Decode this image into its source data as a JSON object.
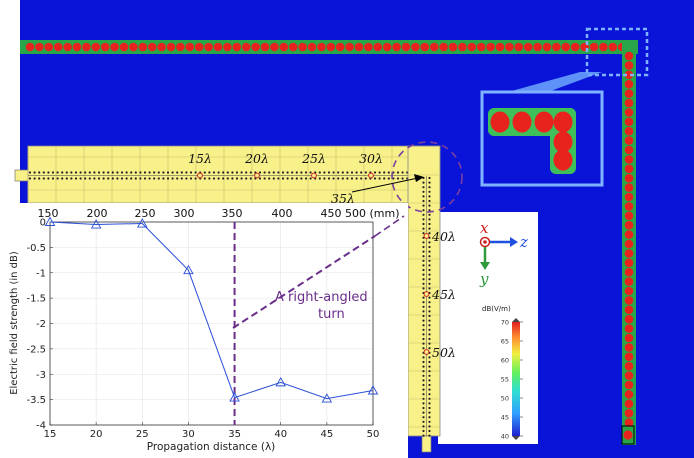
{
  "strip_labels": [
    "15λ",
    "20λ",
    "25λ",
    "30λ",
    "35λ"
  ],
  "vertical_labels": [
    "40λ",
    "45λ",
    "50λ"
  ],
  "mm_ticks": [
    "150",
    "200",
    "250",
    "300",
    "350",
    "400",
    "450",
    "500 (mm)"
  ],
  "annotation": {
    "line1": "A right-angled",
    "line2": "turn"
  },
  "axes": {
    "x_label": "x",
    "y_label": "y",
    "z_label": "z"
  },
  "colorbar": {
    "title": "dB(V/m)",
    "ticks": [
      "70",
      "65",
      "60",
      "55",
      "50",
      "45",
      "40"
    ],
    "range": [
      40,
      70
    ]
  },
  "chart_data": {
    "type": "line",
    "x": [
      15,
      20,
      25,
      30,
      35,
      40,
      45,
      50
    ],
    "values": [
      0,
      -0.05,
      -0.03,
      -0.95,
      -3.46,
      -3.16,
      -3.48,
      -3.32
    ],
    "x_ticks": [
      "15",
      "20",
      "25",
      "30",
      "35",
      "40",
      "45",
      "50"
    ],
    "y_ticks": [
      "0",
      "-0.5",
      "-1",
      "-1.5",
      "-2",
      "-2.5",
      "-3",
      "-3.5",
      "-4"
    ],
    "xlabel": "Propagation distance (λ)",
    "ylabel": "Electric field strength (in dB)",
    "xlim": [
      15,
      50
    ],
    "ylim": [
      -4,
      0
    ],
    "grid": true,
    "marker": "triangle",
    "color": "#2a4fd8",
    "turn_line_x": 35,
    "turn_line_color": "#6a2e8a"
  }
}
